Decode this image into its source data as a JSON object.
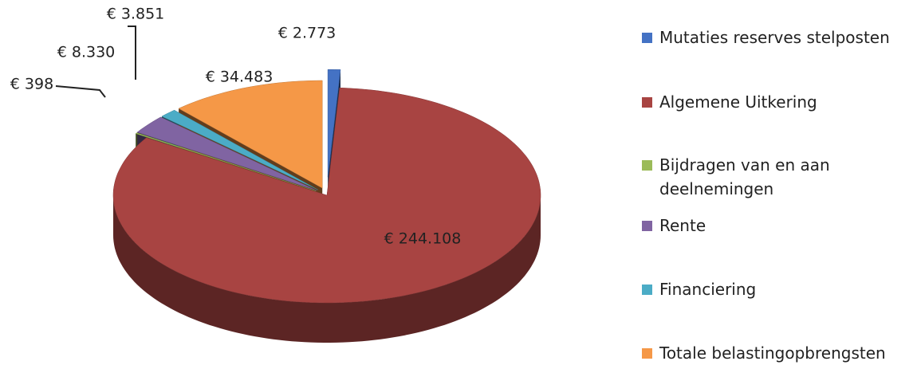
{
  "chart_data": {
    "type": "pie",
    "categories": [
      "Mutaties reserves stelposten",
      "Algemene Uitkering",
      "Bijdragen van en aan deelnemingen",
      "Rente",
      "Financiering",
      "Totale belastingopbrengsten"
    ],
    "values": [
      2773,
      244108,
      398,
      8330,
      3851,
      34483
    ],
    "value_labels": [
      "€ 2.773",
      "€ 244.108",
      "€ 398",
      "€ 8.330",
      "€ 3.851",
      "€ 34.483"
    ],
    "colors": [
      "#4472c4",
      "#a84442",
      "#9bbb59",
      "#8064a2",
      "#4bacc6",
      "#f59847"
    ],
    "legend": "right"
  }
}
